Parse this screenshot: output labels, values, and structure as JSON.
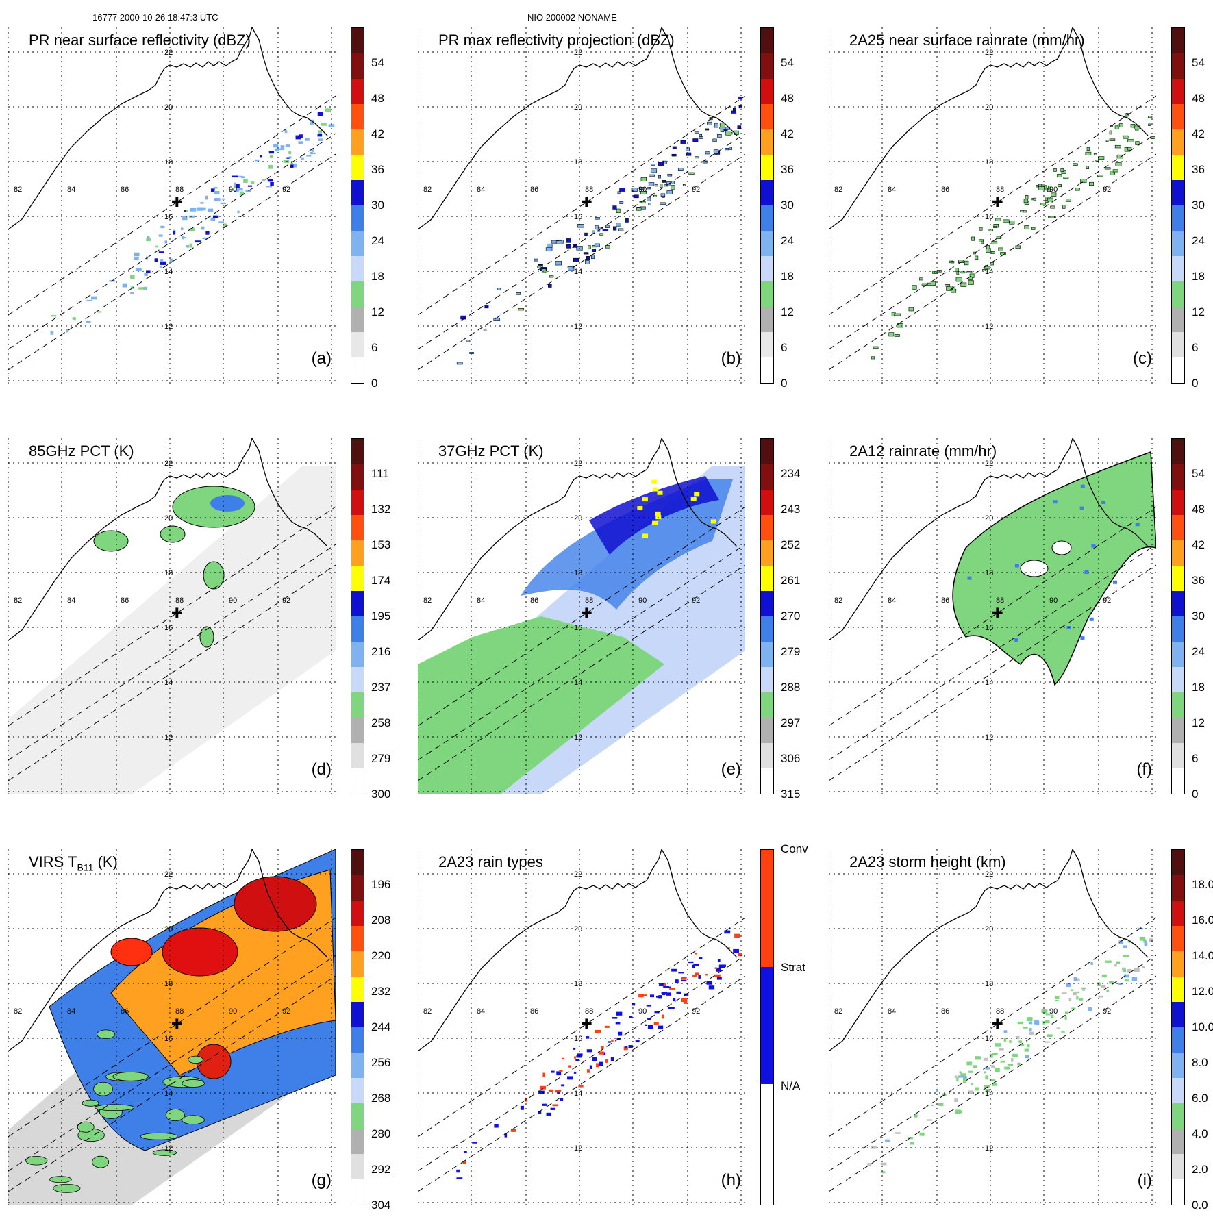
{
  "header": {
    "orbit_time": "16777 2000-10-26 18:47:3 UTC",
    "storm": "NIO 200002 NONAME"
  },
  "map_labels": {
    "lons": [
      "82",
      "84",
      "86",
      "88",
      "90",
      "92"
    ],
    "lats": [
      "22",
      "20",
      "18",
      "16",
      "14",
      "12"
    ]
  },
  "panels": [
    {
      "id": "a",
      "title": "PR near surface reflectivity (dBZ)",
      "label": "(a)",
      "ticks": [
        "54",
        "48",
        "42",
        "36",
        "30",
        "24",
        "18",
        "12",
        "6",
        "0"
      ],
      "scheme": "dbz",
      "field": "swath-sparse"
    },
    {
      "id": "b",
      "title": "PR max reflectivity projection (dBZ)",
      "label": "(b)",
      "ticks": [
        "54",
        "48",
        "42",
        "36",
        "30",
        "24",
        "18",
        "12",
        "6",
        "0"
      ],
      "scheme": "dbz",
      "field": "swath-sparse"
    },
    {
      "id": "c",
      "title": "2A25 near surface rainrate (mm/hr)",
      "label": "(c)",
      "ticks": [
        "54",
        "48",
        "42",
        "36",
        "30",
        "24",
        "18",
        "12",
        "6",
        "0"
      ],
      "scheme": "rain",
      "field": "swath-sparse"
    },
    {
      "id": "d",
      "title": "85GHz PCT (K)",
      "label": "(d)",
      "ticks": [
        "111",
        "132",
        "153",
        "174",
        "195",
        "216",
        "237",
        "258",
        "279",
        "300"
      ],
      "scheme": "pct",
      "field": "wide-gray"
    },
    {
      "id": "e",
      "title": "37GHz PCT (K)",
      "label": "(e)",
      "ticks": [
        "234",
        "243",
        "252",
        "261",
        "270",
        "279",
        "288",
        "297",
        "306",
        "315"
      ],
      "scheme": "pct",
      "field": "wide-color"
    },
    {
      "id": "f",
      "title": "2A12 rainrate (mm/hr)",
      "label": "(f)",
      "ticks": [
        "54",
        "48",
        "42",
        "36",
        "30",
        "24",
        "18",
        "12",
        "6",
        "0"
      ],
      "scheme": "rain",
      "field": "wide-green"
    },
    {
      "id": "g",
      "title_main": "VIRS T",
      "title_sub": "B11",
      "title_tail": " (K)",
      "label": "(g)",
      "ticks": [
        "196",
        "208",
        "220",
        "232",
        "244",
        "256",
        "268",
        "280",
        "292",
        "304"
      ],
      "scheme": "virs",
      "field": "wide-ir"
    },
    {
      "id": "h",
      "title": "2A23 rain types",
      "label": "(h)",
      "ticks": [
        "Conv",
        "Strat",
        "N/A"
      ],
      "scheme": "type",
      "field": "swath-type"
    },
    {
      "id": "i",
      "title": "2A23 storm height (km)",
      "label": "(i)",
      "ticks": [
        "18.0",
        "16.0",
        "14.0",
        "12.0",
        "10.0",
        "8.0",
        "6.0",
        "4.0",
        "2.0",
        "0.0"
      ],
      "scheme": "height",
      "field": "swath-sparse"
    }
  ],
  "colors": {
    "dbz": [
      "#ffffff",
      "#e8e8e8",
      "#b0b0b0",
      "#7fd67f",
      "#c8d8f8",
      "#7fb2f0",
      "#3f7fe8",
      "#1010d0",
      "#ffff00",
      "#ffa020",
      "#ff5010",
      "#d01010",
      "#801010",
      "#501010"
    ],
    "pct": [
      "#501010",
      "#801010",
      "#d01010",
      "#ff5010",
      "#ffa020",
      "#ffff00",
      "#1010d0",
      "#3f7fe8",
      "#7fb2f0",
      "#c8d8f8",
      "#7fd67f",
      "#b0b0b0",
      "#e0e0e0",
      "#ffffff"
    ],
    "conv": "#ff4010",
    "strat": "#1010e0"
  }
}
